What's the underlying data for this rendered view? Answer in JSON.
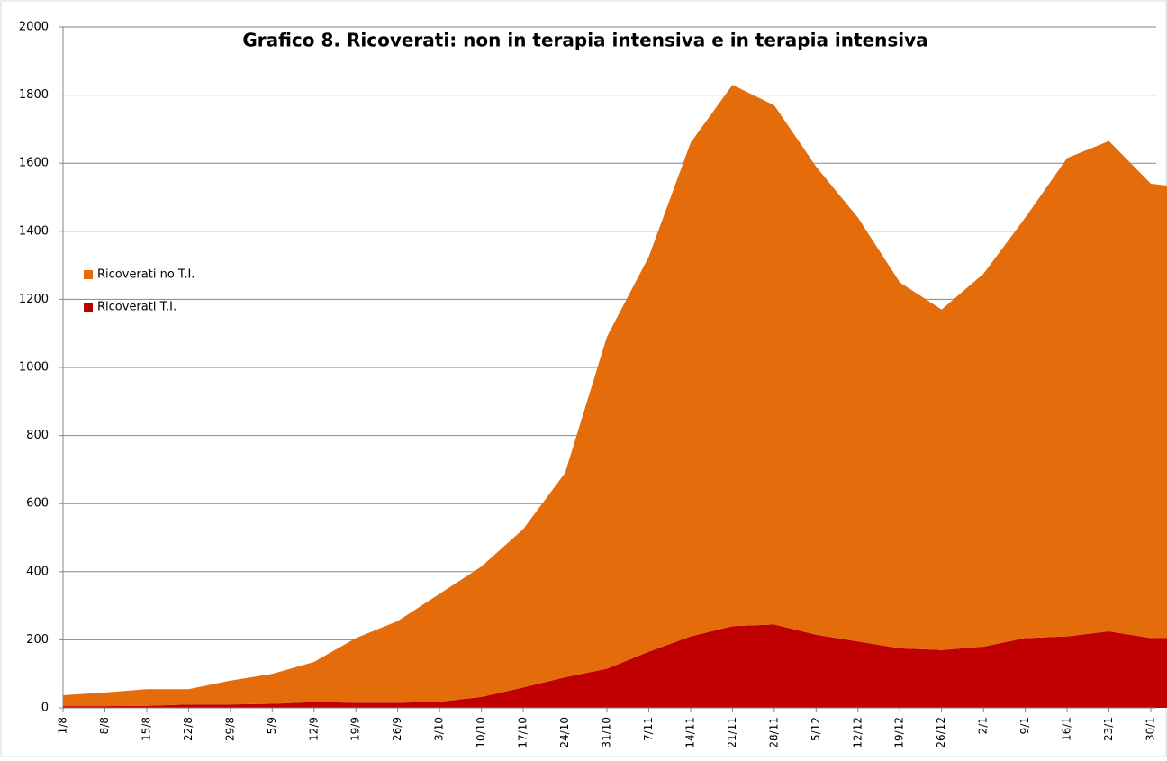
{
  "chart_data": {
    "type": "stacked_area",
    "title": "Grafico 8. Ricoverati: non in terapia intensiva e in terapia intensiva",
    "categories": [
      "1/8",
      "8/8",
      "15/8",
      "22/8",
      "29/8",
      "5/9",
      "12/9",
      "19/9",
      "26/9",
      "3/10",
      "10/10",
      "17/10",
      "24/10",
      "31/10",
      "7/11",
      "14/11",
      "21/11",
      "28/11",
      "5/12",
      "12/12",
      "19/12",
      "26/12",
      "2/1",
      "9/1",
      "16/1",
      "23/1",
      "30/1",
      null
    ],
    "series": [
      {
        "name": "Ricoverati T.I.",
        "color": "#c00000",
        "values": [
          5,
          5,
          6,
          10,
          10,
          12,
          17,
          15,
          15,
          18,
          32,
          60,
          90,
          115,
          165,
          210,
          240,
          245,
          215,
          195,
          175,
          170,
          180,
          205,
          210,
          225,
          205,
          205
        ]
      },
      {
        "name": "Ricoverati no T.I.",
        "color": "#e46c0a",
        "values": [
          32,
          40,
          49,
          45,
          70,
          88,
          118,
          190,
          240,
          317,
          383,
          465,
          600,
          975,
          1160,
          1450,
          1590,
          1525,
          1375,
          1245,
          1075,
          1000,
          1095,
          1235,
          1405,
          1440,
          1335,
          1320
        ]
      }
    ],
    "ylim": [
      0,
      2000
    ],
    "yticks": [
      0,
      200,
      400,
      600,
      800,
      1000,
      1200,
      1400,
      1600,
      1800,
      2000
    ],
    "grid": true
  }
}
